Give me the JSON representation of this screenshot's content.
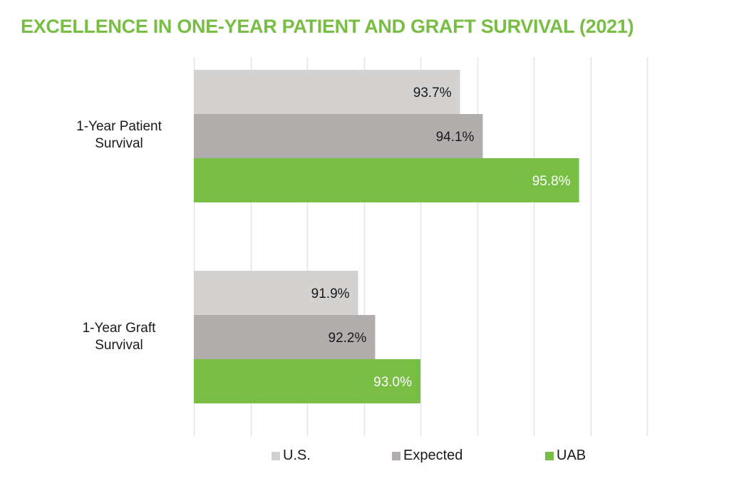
{
  "chart_data": {
    "type": "bar",
    "orientation": "horizontal",
    "title": "EXCELLENCE IN ONE-YEAR PATIENT AND GRAFT SURVIVAL (2021)",
    "categories": [
      "1-Year Patient Survival",
      "1-Year Graft Survival"
    ],
    "category_lines": [
      [
        "1-Year Patient",
        "Survival"
      ],
      [
        "1-Year Graft",
        "Survival"
      ]
    ],
    "series": [
      {
        "name": "U.S.",
        "color": "#d3d2d1",
        "label_color": "#1a1a1a",
        "values": [
          93.7,
          91.9
        ],
        "labels": [
          "93.7%",
          "91.9%"
        ]
      },
      {
        "name": "Expected",
        "color": "#b0adac",
        "label_color": "#1a1a1a",
        "values": [
          94.1,
          92.2
        ],
        "labels": [
          "94.1%",
          "92.2%"
        ]
      },
      {
        "name": "UAB",
        "color": "#78bd44",
        "label_color": "#ffffff",
        "values": [
          95.8,
          93.0
        ],
        "labels": [
          "95.8%",
          "93.0%"
        ]
      }
    ],
    "xlim": [
      89,
      97
    ],
    "grid": true,
    "gridline_step": 1,
    "tick_labels_shown": false,
    "legend_position": "bottom",
    "xlabel": "",
    "ylabel": ""
  },
  "title_color": "#78bd44"
}
